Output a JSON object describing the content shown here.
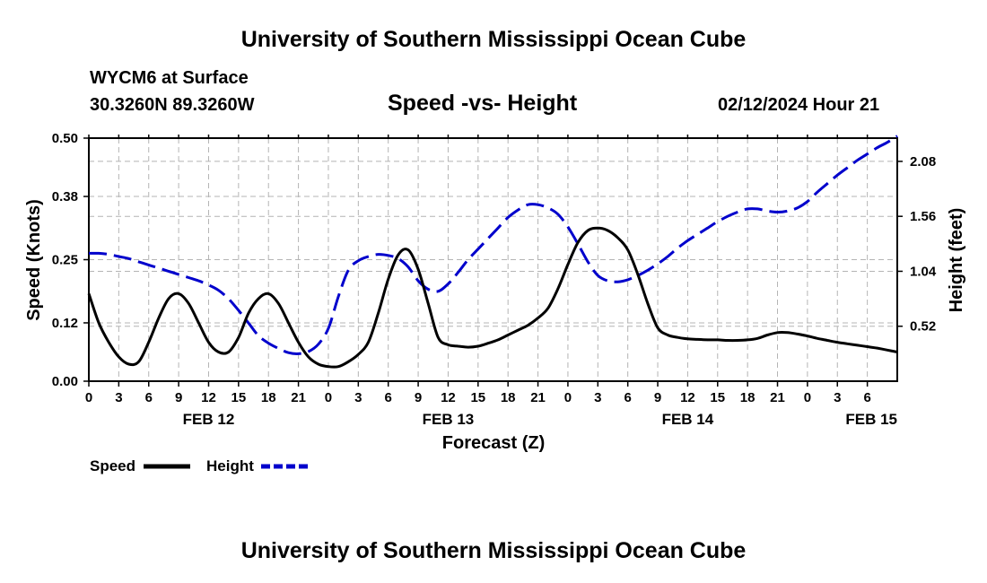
{
  "header": {
    "title": "University of Southern Mississippi Ocean Cube",
    "station": "WYCM6 at Surface",
    "location": "30.3260N  89.3260W",
    "subtitle": "Speed -vs- Height",
    "timestamp": "02/12/2024 Hour 21"
  },
  "footer": {
    "title": "University of Southern Mississippi Ocean Cube"
  },
  "legend": {
    "speed_label": "Speed",
    "height_label": "Height"
  },
  "chart_data": {
    "type": "line",
    "title": "Speed -vs- Height",
    "xlabel": "Forecast (Z)",
    "ylabel_left": "Speed (Knots)",
    "ylabel_right": "Height (feet)",
    "x_range_hours": [
      0,
      81
    ],
    "x_ticks": [
      {
        "h": 0,
        "label": "0"
      },
      {
        "h": 3,
        "label": "3"
      },
      {
        "h": 6,
        "label": "6"
      },
      {
        "h": 9,
        "label": "9"
      },
      {
        "h": 12,
        "label": "12"
      },
      {
        "h": 15,
        "label": "15"
      },
      {
        "h": 18,
        "label": "18"
      },
      {
        "h": 21,
        "label": "21"
      },
      {
        "h": 24,
        "label": "0"
      },
      {
        "h": 27,
        "label": "3"
      },
      {
        "h": 30,
        "label": "6"
      },
      {
        "h": 33,
        "label": "9"
      },
      {
        "h": 36,
        "label": "12"
      },
      {
        "h": 39,
        "label": "15"
      },
      {
        "h": 42,
        "label": "18"
      },
      {
        "h": 45,
        "label": "21"
      },
      {
        "h": 48,
        "label": "0"
      },
      {
        "h": 51,
        "label": "3"
      },
      {
        "h": 54,
        "label": "6"
      },
      {
        "h": 57,
        "label": "9"
      },
      {
        "h": 60,
        "label": "12"
      },
      {
        "h": 63,
        "label": "15"
      },
      {
        "h": 66,
        "label": "18"
      },
      {
        "h": 69,
        "label": "21"
      },
      {
        "h": 72,
        "label": "0"
      },
      {
        "h": 75,
        "label": "3"
      },
      {
        "h": 78,
        "label": "6"
      }
    ],
    "date_labels": [
      {
        "h": 12,
        "label": "FEB 12"
      },
      {
        "h": 36,
        "label": "FEB 13"
      },
      {
        "h": 60,
        "label": "FEB 14"
      },
      {
        "h": 78,
        "label": "FEB 15"
      }
    ],
    "y_left": {
      "min": 0,
      "max": 0.5,
      "ticks": [
        "0.00",
        "0.12",
        "0.25",
        "0.38",
        "0.50"
      ]
    },
    "y_right": {
      "min": 0.0,
      "max": 2.3,
      "ticks": [
        "0.52",
        "1.04",
        "1.56",
        "2.08"
      ]
    },
    "series": [
      {
        "name": "Speed",
        "axis": "left",
        "color": "#000000",
        "style": "solid",
        "x": [
          0,
          1,
          2,
          3,
          4,
          5,
          6,
          7,
          8,
          9,
          10,
          11,
          12,
          13,
          14,
          15,
          16,
          17,
          18,
          19,
          20,
          21,
          22,
          23,
          24,
          25,
          26,
          27,
          28,
          29,
          30,
          31,
          32,
          33,
          34,
          35,
          36,
          37,
          38,
          39,
          40,
          41,
          42,
          43,
          44,
          45,
          46,
          47,
          48,
          49,
          50,
          51,
          52,
          53,
          54,
          55,
          56,
          57,
          58,
          59,
          60,
          61,
          62,
          63,
          64,
          65,
          66,
          67,
          68,
          69,
          70,
          71,
          72,
          73,
          74,
          75,
          76,
          77,
          78,
          79,
          80,
          81
        ],
        "values": [
          0.18,
          0.12,
          0.08,
          0.05,
          0.035,
          0.04,
          0.08,
          0.13,
          0.17,
          0.18,
          0.16,
          0.12,
          0.08,
          0.06,
          0.06,
          0.09,
          0.14,
          0.17,
          0.18,
          0.16,
          0.12,
          0.08,
          0.05,
          0.035,
          0.03,
          0.03,
          0.04,
          0.055,
          0.08,
          0.14,
          0.21,
          0.26,
          0.27,
          0.23,
          0.16,
          0.09,
          0.075,
          0.072,
          0.07,
          0.072,
          0.078,
          0.085,
          0.095,
          0.105,
          0.115,
          0.13,
          0.15,
          0.19,
          0.24,
          0.285,
          0.31,
          0.315,
          0.31,
          0.295,
          0.27,
          0.22,
          0.16,
          0.11,
          0.095,
          0.09,
          0.087,
          0.086,
          0.085,
          0.085,
          0.084,
          0.084,
          0.085,
          0.088,
          0.095,
          0.1,
          0.1,
          0.097,
          0.093,
          0.088,
          0.084,
          0.08,
          0.077,
          0.074,
          0.071,
          0.068,
          0.064,
          0.06
        ]
      },
      {
        "name": "Height",
        "axis": "right",
        "color": "#0000cc",
        "style": "dashed",
        "x": [
          0,
          1,
          2,
          3,
          4,
          5,
          6,
          7,
          8,
          9,
          10,
          11,
          12,
          13,
          14,
          15,
          16,
          17,
          18,
          19,
          20,
          21,
          22,
          23,
          24,
          25,
          26,
          27,
          28,
          29,
          30,
          31,
          32,
          33,
          34,
          35,
          36,
          37,
          38,
          39,
          40,
          41,
          42,
          43,
          44,
          45,
          46,
          47,
          48,
          49,
          50,
          51,
          52,
          53,
          54,
          55,
          56,
          57,
          58,
          59,
          60,
          61,
          62,
          63,
          64,
          65,
          66,
          67,
          68,
          69,
          70,
          71,
          72,
          73,
          74,
          75,
          76,
          77,
          78,
          79,
          80,
          81
        ],
        "values": [
          1.21,
          1.21,
          1.2,
          1.18,
          1.16,
          1.13,
          1.1,
          1.07,
          1.04,
          1.01,
          0.98,
          0.95,
          0.91,
          0.86,
          0.78,
          0.67,
          0.55,
          0.43,
          0.36,
          0.31,
          0.27,
          0.26,
          0.28,
          0.35,
          0.5,
          0.8,
          1.05,
          1.14,
          1.18,
          1.2,
          1.19,
          1.16,
          1.08,
          0.95,
          0.87,
          0.85,
          0.92,
          1.03,
          1.15,
          1.25,
          1.35,
          1.45,
          1.55,
          1.62,
          1.67,
          1.67,
          1.64,
          1.58,
          1.46,
          1.3,
          1.13,
          1.0,
          0.95,
          0.94,
          0.96,
          1.0,
          1.05,
          1.11,
          1.18,
          1.26,
          1.33,
          1.39,
          1.45,
          1.51,
          1.56,
          1.6,
          1.63,
          1.63,
          1.61,
          1.6,
          1.61,
          1.64,
          1.7,
          1.79,
          1.87,
          1.95,
          2.02,
          2.09,
          2.15,
          2.21,
          2.26,
          2.32
        ]
      }
    ]
  }
}
